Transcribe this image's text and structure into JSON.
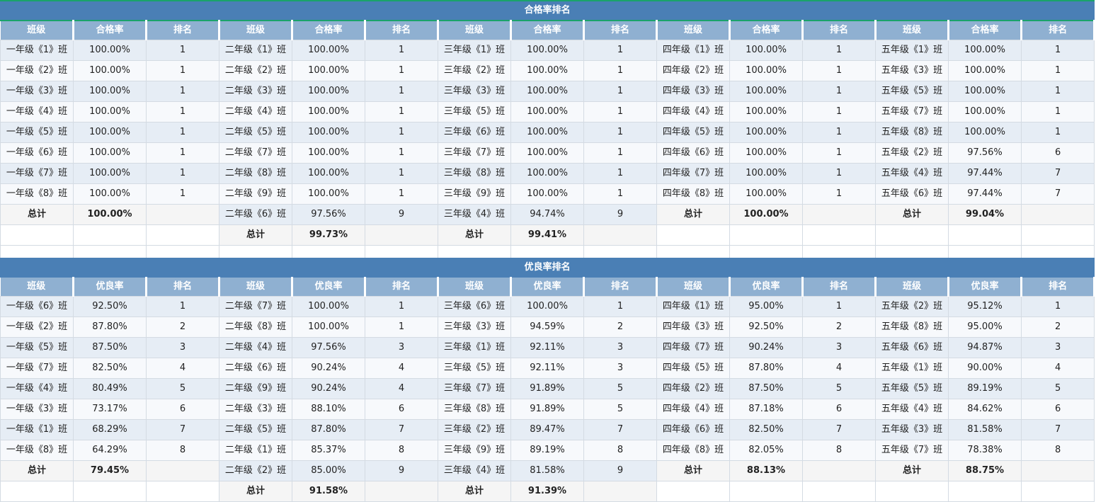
{
  "pass_section": {
    "title": "合格率排名",
    "headers": [
      "班级",
      "合格率",
      "排名"
    ],
    "grades": [
      {
        "rows": [
          [
            "一年级《1》班",
            "100.00%",
            "1"
          ],
          [
            "一年级《2》班",
            "100.00%",
            "1"
          ],
          [
            "一年级《3》班",
            "100.00%",
            "1"
          ],
          [
            "一年级《4》班",
            "100.00%",
            "1"
          ],
          [
            "一年级《5》班",
            "100.00%",
            "1"
          ],
          [
            "一年级《6》班",
            "100.00%",
            "1"
          ],
          [
            "一年级《7》班",
            "100.00%",
            "1"
          ],
          [
            "一年级《8》班",
            "100.00%",
            "1"
          ]
        ],
        "total_label": "总计",
        "total_value": "100.00%"
      },
      {
        "rows": [
          [
            "二年级《1》班",
            "100.00%",
            "1"
          ],
          [
            "二年级《2》班",
            "100.00%",
            "1"
          ],
          [
            "二年级《3》班",
            "100.00%",
            "1"
          ],
          [
            "二年级《4》班",
            "100.00%",
            "1"
          ],
          [
            "二年级《5》班",
            "100.00%",
            "1"
          ],
          [
            "二年级《7》班",
            "100.00%",
            "1"
          ],
          [
            "二年级《8》班",
            "100.00%",
            "1"
          ],
          [
            "二年级《9》班",
            "100.00%",
            "1"
          ],
          [
            "二年级《6》班",
            "97.56%",
            "9"
          ]
        ],
        "total_label": "总计",
        "total_value": "99.73%"
      },
      {
        "rows": [
          [
            "三年级《1》班",
            "100.00%",
            "1"
          ],
          [
            "三年级《2》班",
            "100.00%",
            "1"
          ],
          [
            "三年级《3》班",
            "100.00%",
            "1"
          ],
          [
            "三年级《5》班",
            "100.00%",
            "1"
          ],
          [
            "三年级《6》班",
            "100.00%",
            "1"
          ],
          [
            "三年级《7》班",
            "100.00%",
            "1"
          ],
          [
            "三年级《8》班",
            "100.00%",
            "1"
          ],
          [
            "三年级《9》班",
            "100.00%",
            "1"
          ],
          [
            "三年级《4》班",
            "94.74%",
            "9"
          ]
        ],
        "total_label": "总计",
        "total_value": "99.41%"
      },
      {
        "rows": [
          [
            "四年级《1》班",
            "100.00%",
            "1"
          ],
          [
            "四年级《2》班",
            "100.00%",
            "1"
          ],
          [
            "四年级《3》班",
            "100.00%",
            "1"
          ],
          [
            "四年级《4》班",
            "100.00%",
            "1"
          ],
          [
            "四年级《5》班",
            "100.00%",
            "1"
          ],
          [
            "四年级《6》班",
            "100.00%",
            "1"
          ],
          [
            "四年级《7》班",
            "100.00%",
            "1"
          ],
          [
            "四年级《8》班",
            "100.00%",
            "1"
          ]
        ],
        "total_label": "总计",
        "total_value": "100.00%"
      },
      {
        "rows": [
          [
            "五年级《1》班",
            "100.00%",
            "1"
          ],
          [
            "五年级《3》班",
            "100.00%",
            "1"
          ],
          [
            "五年级《5》班",
            "100.00%",
            "1"
          ],
          [
            "五年级《7》班",
            "100.00%",
            "1"
          ],
          [
            "五年级《8》班",
            "100.00%",
            "1"
          ],
          [
            "五年级《2》班",
            "97.56%",
            "6"
          ],
          [
            "五年级《4》班",
            "97.44%",
            "7"
          ],
          [
            "五年级《6》班",
            "97.44%",
            "7"
          ]
        ],
        "total_label": "总计",
        "total_value": "99.04%"
      }
    ]
  },
  "excellent_section": {
    "title": "优良率排名",
    "headers": [
      "班级",
      "优良率",
      "排名"
    ],
    "grades": [
      {
        "rows": [
          [
            "一年级《6》班",
            "92.50%",
            "1"
          ],
          [
            "一年级《2》班",
            "87.80%",
            "2"
          ],
          [
            "一年级《5》班",
            "87.50%",
            "3"
          ],
          [
            "一年级《7》班",
            "82.50%",
            "4"
          ],
          [
            "一年级《4》班",
            "80.49%",
            "5"
          ],
          [
            "一年级《3》班",
            "73.17%",
            "6"
          ],
          [
            "一年级《1》班",
            "68.29%",
            "7"
          ],
          [
            "一年级《8》班",
            "64.29%",
            "8"
          ]
        ],
        "total_label": "总计",
        "total_value": "79.45%"
      },
      {
        "rows": [
          [
            "二年级《7》班",
            "100.00%",
            "1"
          ],
          [
            "二年级《8》班",
            "100.00%",
            "1"
          ],
          [
            "二年级《4》班",
            "97.56%",
            "3"
          ],
          [
            "二年级《6》班",
            "90.24%",
            "4"
          ],
          [
            "二年级《9》班",
            "90.24%",
            "4"
          ],
          [
            "二年级《3》班",
            "88.10%",
            "6"
          ],
          [
            "二年级《5》班",
            "87.80%",
            "7"
          ],
          [
            "二年级《1》班",
            "85.37%",
            "8"
          ],
          [
            "二年级《2》班",
            "85.00%",
            "9"
          ]
        ],
        "total_label": "总计",
        "total_value": "91.58%"
      },
      {
        "rows": [
          [
            "三年级《6》班",
            "100.00%",
            "1"
          ],
          [
            "三年级《3》班",
            "94.59%",
            "2"
          ],
          [
            "三年级《1》班",
            "92.11%",
            "3"
          ],
          [
            "三年级《5》班",
            "92.11%",
            "3"
          ],
          [
            "三年级《7》班",
            "91.89%",
            "5"
          ],
          [
            "三年级《8》班",
            "91.89%",
            "5"
          ],
          [
            "三年级《2》班",
            "89.47%",
            "7"
          ],
          [
            "三年级《9》班",
            "89.19%",
            "8"
          ],
          [
            "三年级《4》班",
            "81.58%",
            "9"
          ]
        ],
        "total_label": "总计",
        "total_value": "91.39%"
      },
      {
        "rows": [
          [
            "四年级《1》班",
            "95.00%",
            "1"
          ],
          [
            "四年级《3》班",
            "92.50%",
            "2"
          ],
          [
            "四年级《7》班",
            "90.24%",
            "3"
          ],
          [
            "四年级《5》班",
            "87.80%",
            "4"
          ],
          [
            "四年级《2》班",
            "87.50%",
            "5"
          ],
          [
            "四年级《4》班",
            "87.18%",
            "6"
          ],
          [
            "四年级《6》班",
            "82.50%",
            "7"
          ],
          [
            "四年级《8》班",
            "82.05%",
            "8"
          ]
        ],
        "total_label": "总计",
        "total_value": "88.13%"
      },
      {
        "rows": [
          [
            "五年级《2》班",
            "95.12%",
            "1"
          ],
          [
            "五年级《8》班",
            "95.00%",
            "2"
          ],
          [
            "五年级《6》班",
            "94.87%",
            "3"
          ],
          [
            "五年级《1》班",
            "90.00%",
            "4"
          ],
          [
            "五年级《5》班",
            "89.19%",
            "5"
          ],
          [
            "五年级《4》班",
            "84.62%",
            "6"
          ],
          [
            "五年级《3》班",
            "81.58%",
            "7"
          ],
          [
            "五年级《7》班",
            "78.38%",
            "8"
          ]
        ],
        "total_label": "总计",
        "total_value": "88.75%"
      }
    ]
  }
}
